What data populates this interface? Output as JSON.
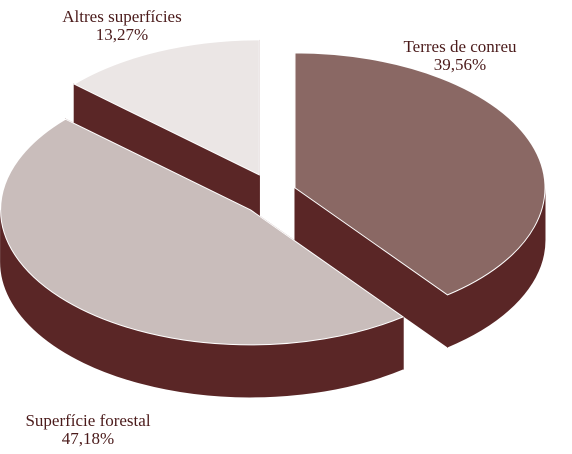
{
  "chart_data": {
    "type": "pie",
    "categories": [
      "Terres de conreu",
      "Superfície forestal",
      "Altres superfícies"
    ],
    "values": [
      39.56,
      47.18,
      13.27
    ],
    "value_labels": [
      "39,56%",
      "47,18%",
      "13,27%"
    ],
    "colors": [
      "#8a6864",
      "#c9bdbb",
      "#ebe6e5"
    ],
    "side_color": "#5a2626"
  }
}
